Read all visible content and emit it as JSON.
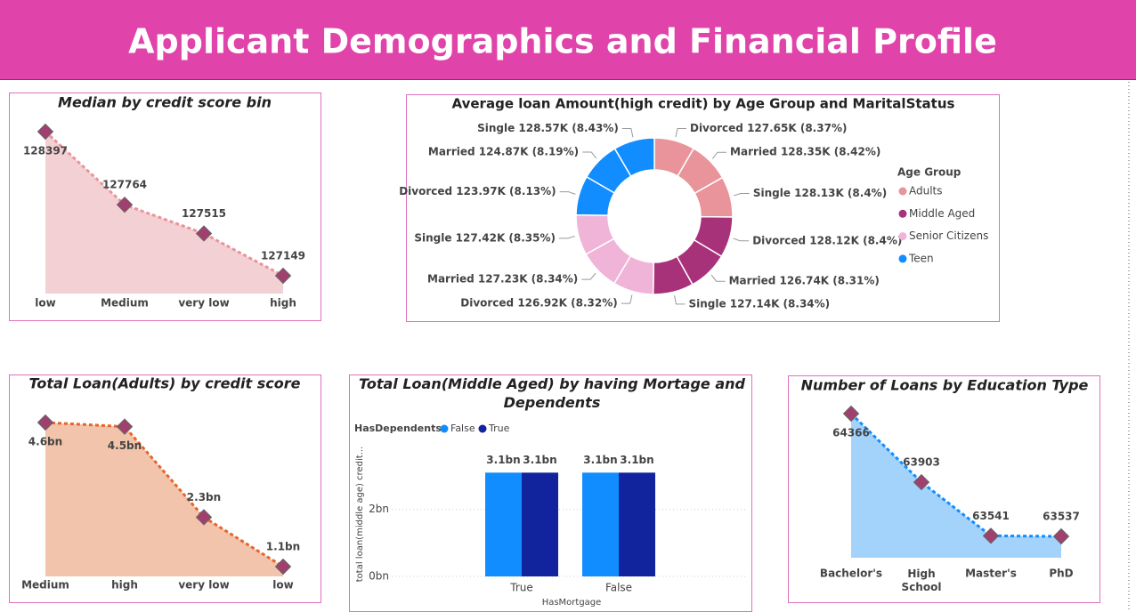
{
  "title": "Applicant Demographics and Financial Profile",
  "chart_data": [
    {
      "type": "area",
      "title": "Median by credit score bin",
      "categories": [
        "low",
        "Medium",
        "very low",
        "high"
      ],
      "values": [
        128397,
        127764,
        127515,
        127149
      ],
      "color": "#f3d0d4",
      "line_color": "#e8949a",
      "marker_color": "#a0406e"
    },
    {
      "type": "donut",
      "title": "Average loan Amount(high credit) by Age Group and MaritalStatus",
      "legend_title": "Age Group",
      "series": [
        {
          "name": "Adults",
          "color": "#e8949a",
          "values": [
            127650,
            128350,
            128130
          ],
          "value_labels": [
            "Divorced 127.65K (8.37%)",
            "Married 128.35K (8.42%)",
            "Single 128.13K (8.4%)"
          ]
        },
        {
          "name": "Middle Aged",
          "color": "#a8327a",
          "values": [
            128120,
            126740,
            127140
          ],
          "value_labels": [
            "Divorced 128.12K (8.4%)",
            "Married 126.74K (8.31%)",
            "Single 127.14K (8.34%)"
          ]
        },
        {
          "name": "Senior Citizens",
          "color": "#f0b4d8",
          "values": [
            126920,
            127230,
            127420
          ],
          "value_labels": [
            "Divorced 126.92K (8.32%)",
            "Married 127.23K (8.34%)",
            "Single 127.42K (8.35%)"
          ]
        },
        {
          "name": "Teen",
          "color": "#118dff",
          "values": [
            123970,
            124870,
            128570
          ],
          "value_labels": [
            "Divorced 123.97K (8.13%)",
            "Married 124.87K (8.19%)",
            "Single 128.57K (8.43%)"
          ]
        }
      ]
    },
    {
      "type": "area",
      "title": "Total Loan(Adults) by credit score",
      "categories": [
        "Medium",
        "high",
        "very low",
        "low"
      ],
      "values": [
        4600000000,
        4500000000,
        2300000000,
        1100000000
      ],
      "value_labels": [
        "4.6bn",
        "4.5bn",
        "2.3bn",
        "1.1bn"
      ],
      "color": "#f2c4ab",
      "line_color": "#e5652e",
      "marker_color": "#a0406e"
    },
    {
      "type": "bar",
      "title": "Total Loan(Middle Aged) by having Mortage and Dependents",
      "legend_title": "HasDependents",
      "categories": [
        "True",
        "False"
      ],
      "series": [
        {
          "name": "False",
          "color": "#118dff",
          "values": [
            3100000000,
            3100000000
          ],
          "value_labels": [
            "3.1bn",
            "3.1bn"
          ]
        },
        {
          "name": "True",
          "color": "#12239e",
          "values": [
            3100000000,
            3100000000
          ],
          "value_labels": [
            "3.1bn",
            "3.1bn"
          ]
        }
      ],
      "ylim": [
        0,
        3800000000
      ],
      "yticks": [
        {
          "value": 0,
          "label": "0bn"
        },
        {
          "value": 2000000000,
          "label": "2bn"
        }
      ],
      "x_label": "HasMortgage",
      "y_label": "total loan(middle age) credit...",
      "grid": true
    },
    {
      "type": "area",
      "title": "Number of Loans by Education Type",
      "categories": [
        "Bachelor's",
        "High School",
        "Master's",
        "PhD"
      ],
      "values": [
        64366,
        63903,
        63541,
        63537
      ],
      "color": "#a3d2fb",
      "line_color": "#118dff",
      "marker_color": "#a0406e"
    }
  ]
}
